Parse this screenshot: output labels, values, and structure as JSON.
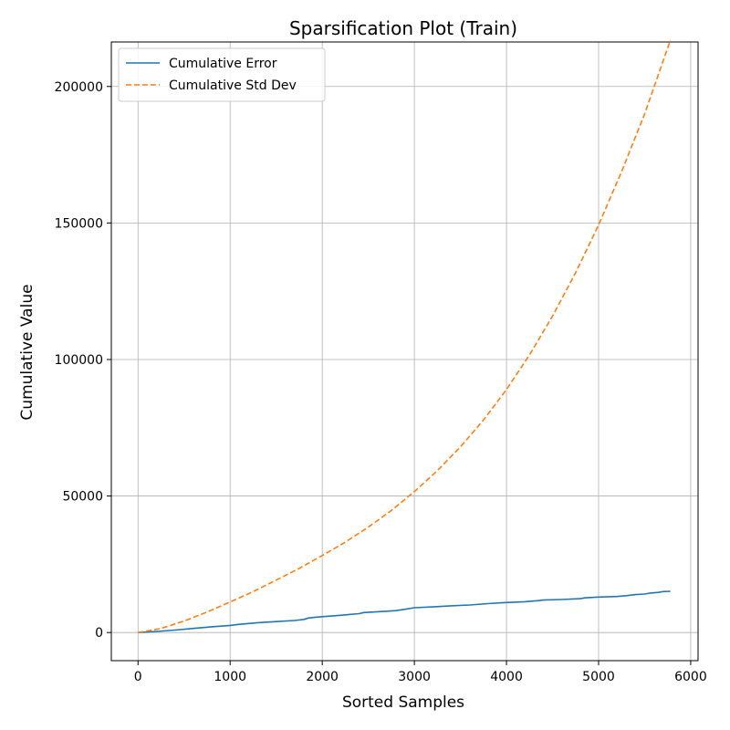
{
  "chart_data": {
    "type": "line",
    "title": "Sparsification Plot (Train)",
    "xlabel": "Sorted Samples",
    "ylabel": "Cumulative Value",
    "xlim": [
      -290,
      6080
    ],
    "ylim": [
      -10300,
      216300
    ],
    "xticks": [
      0,
      1000,
      2000,
      3000,
      4000,
      5000,
      6000
    ],
    "xtick_labels": [
      "0",
      "1000",
      "2000",
      "3000",
      "4000",
      "5000",
      "6000"
    ],
    "yticks": [
      0,
      50000,
      100000,
      150000,
      200000
    ],
    "ytick_labels": [
      "0",
      "50000",
      "100000",
      "150000",
      "200000"
    ],
    "grid": true,
    "legend_position": "top-left",
    "series": [
      {
        "name": "Cumulative Error",
        "color": "#1f77b4",
        "style": "solid",
        "x": [
          0,
          200,
          400,
          600,
          800,
          1000,
          1100,
          1200,
          1300,
          1500,
          1700,
          1800,
          1850,
          1900,
          2000,
          2200,
          2400,
          2450,
          2600,
          2800,
          2900,
          3000,
          3200,
          3400,
          3600,
          3800,
          3950,
          4000,
          4200,
          4350,
          4400,
          4600,
          4800,
          4850,
          5000,
          5200,
          5300,
          5400,
          5500,
          5550,
          5650,
          5700,
          5780
        ],
        "y": [
          0,
          400,
          900,
          1500,
          2100,
          2600,
          3000,
          3300,
          3600,
          4000,
          4400,
          4800,
          5300,
          5500,
          5800,
          6300,
          6900,
          7300,
          7600,
          8000,
          8500,
          9100,
          9400,
          9800,
          10100,
          10600,
          10900,
          11000,
          11300,
          11700,
          11900,
          12100,
          12400,
          12700,
          13000,
          13200,
          13500,
          13900,
          14100,
          14400,
          14700,
          15000,
          15100
        ]
      },
      {
        "name": "Cumulative Std Dev",
        "color": "#ff7f0e",
        "style": "dashed",
        "x": [
          0,
          250,
          500,
          750,
          1000,
          1250,
          1500,
          1750,
          2000,
          2250,
          2500,
          2750,
          3000,
          3250,
          3500,
          3750,
          4000,
          4250,
          4500,
          4750,
          5000,
          5250,
          5500,
          5780
        ],
        "y": [
          0,
          1500,
          4200,
          7500,
          11200,
          15000,
          19200,
          23500,
          28200,
          33100,
          38600,
          44700,
          51600,
          59300,
          68000,
          77800,
          89000,
          101700,
          115900,
          131700,
          149300,
          168800,
          190000,
          217000
        ]
      }
    ]
  }
}
